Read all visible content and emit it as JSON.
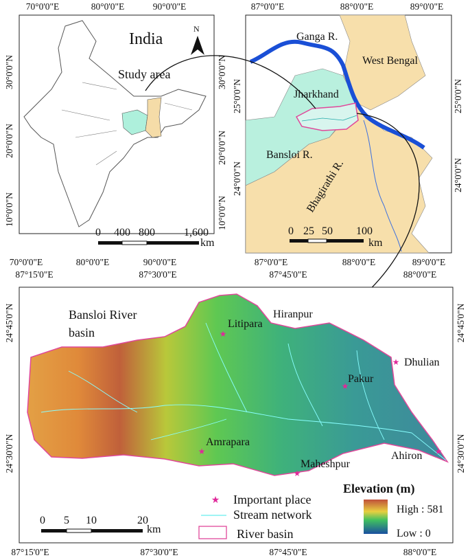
{
  "india_map": {
    "title": "India",
    "subtitle": "Study area",
    "north": "N",
    "top_labels": [
      "70°0'0\"E",
      "80°0'0\"E",
      "90°0'0\"E"
    ],
    "bottom_labels": [
      "70°0'0\"E",
      "80°0'0\"E",
      "90°0'0\"E"
    ],
    "left_labels": [
      "30°0'0\"N",
      "20°0'0\"N",
      "10°0'0\"N"
    ],
    "right_labels": [
      "30°0'0\"N",
      "20°0'0\"N",
      "10°0'0\"N"
    ],
    "scale": {
      "ticks": [
        "0",
        "400",
        "800",
        "1,600"
      ],
      "unit": "km"
    }
  },
  "state_map": {
    "labels": [
      "Ganga R.",
      "West Bengal",
      "Jharkhand",
      "Bansloi R.",
      "Bhagirathi R."
    ],
    "top_labels": [
      "87°0'0\"E",
      "88°0'0\"E",
      "89°0'0\"E"
    ],
    "bottom_labels": [
      "87°0'0\"E",
      "88°0'0\"E",
      "89°0'0\"E"
    ],
    "left_labels": [
      "25°0'0\"N",
      "24°0'0\"N"
    ],
    "right_labels": [
      "25°0'0\"N",
      "24°0'0\"N"
    ],
    "scale": {
      "ticks": [
        "0",
        "25",
        "50",
        "100"
      ],
      "unit": "km"
    }
  },
  "basin_map": {
    "title": [
      "Bansloi River",
      "basin"
    ],
    "places": [
      "Litipara",
      "Hiranpur",
      "Dhulian",
      "Pakur",
      "Amrapara",
      "Maheshpur",
      "Ahiron"
    ],
    "top_labels": [
      "87°15'0\"E",
      "87°30'0\"E",
      "87°45'0\"E",
      "88°0'0\"E"
    ],
    "bottom_labels": [
      "87°15'0\"E",
      "87°30'0\"E",
      "87°45'0\"E",
      "88°0'0\"E"
    ],
    "left_labels": [
      "24°45'0\"N",
      "24°30'0\"N"
    ],
    "right_labels": [
      "24°45'0\"N",
      "24°30'0\"N"
    ],
    "legend": [
      "Important place",
      "Stream network",
      "River basin"
    ],
    "elevation": {
      "title": "Elevation (m)",
      "high": "High : 581",
      "low": "Low : 0"
    },
    "scale": {
      "ticks": [
        "0",
        "5",
        "10",
        "20"
      ],
      "unit": "km"
    }
  }
}
